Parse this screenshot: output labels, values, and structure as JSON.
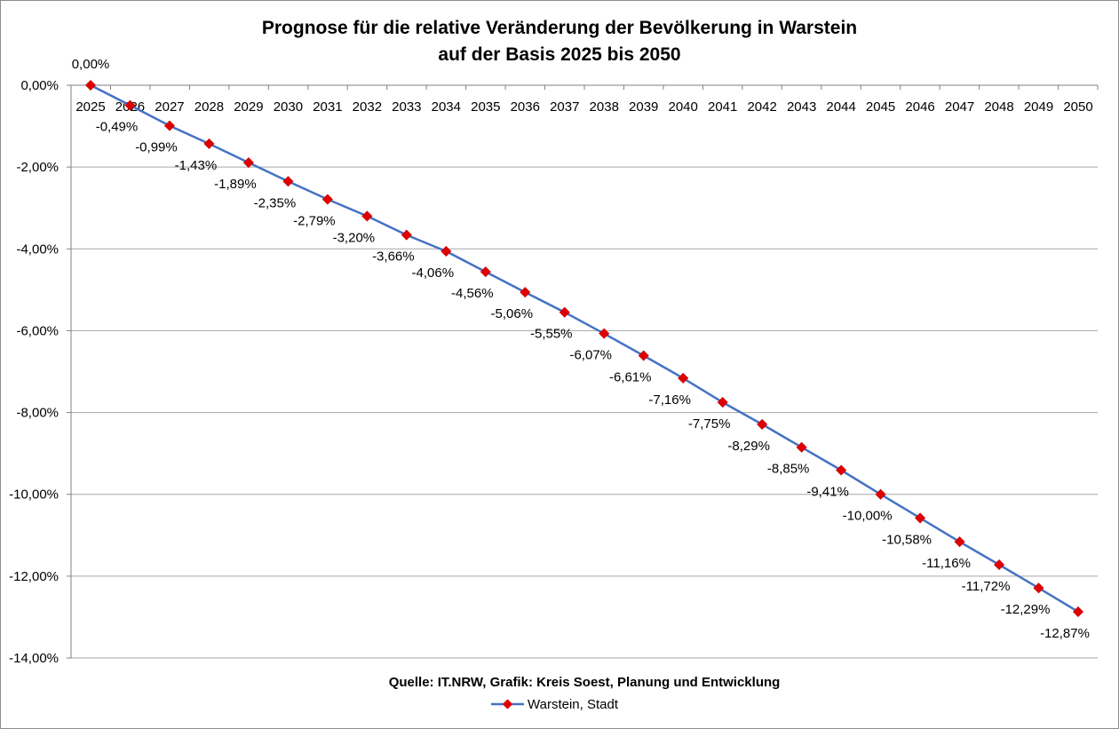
{
  "chart_data": {
    "type": "line",
    "title_line1": "Prognose für die relative Veränderung der Bevölkerung in Warstein",
    "title_line2": "auf der Basis 2025 bis 2050",
    "source": "Quelle: IT.NRW, Grafik: Kreis Soest, Planung und Entwicklung",
    "ylim": [
      -14,
      0
    ],
    "y_ticks": [
      0,
      -2,
      -4,
      -6,
      -8,
      -10,
      -12,
      -14
    ],
    "y_tick_labels": [
      "0,00%",
      "-2,00%",
      "-4,00%",
      "-6,00%",
      "-8,00%",
      "-10,00%",
      "-12,00%",
      "-14,00%"
    ],
    "categories": [
      "2025",
      "2026",
      "2027",
      "2028",
      "2029",
      "2030",
      "2031",
      "2032",
      "2033",
      "2034",
      "2035",
      "2036",
      "2037",
      "2038",
      "2039",
      "2040",
      "2041",
      "2042",
      "2043",
      "2044",
      "2045",
      "2046",
      "2047",
      "2048",
      "2049",
      "2050"
    ],
    "grid": true,
    "legend_position": "bottom",
    "series": [
      {
        "name": "Warstein, Stadt",
        "line_color": "#4472C4",
        "marker_color": "#E00000",
        "values": [
          0,
          -0.49,
          -0.99,
          -1.43,
          -1.89,
          -2.35,
          -2.79,
          -3.2,
          -3.66,
          -4.06,
          -4.56,
          -5.06,
          -5.55,
          -6.07,
          -6.61,
          -7.16,
          -7.75,
          -8.29,
          -8.85,
          -9.41,
          -10.0,
          -10.58,
          -11.16,
          -11.72,
          -12.29,
          -12.87
        ],
        "labels": [
          "0,00%",
          "-0,49%",
          "-0,99%",
          "-1,43%",
          "-1,89%",
          "-2,35%",
          "-2,79%",
          "-3,20%",
          "-3,66%",
          "-4,06%",
          "-4,56%",
          "-5,06%",
          "-5,55%",
          "-6,07%",
          "-6,61%",
          "-7,16%",
          "-7,75%",
          "-8,29%",
          "-8,85%",
          "-9,41%",
          "-10,00%",
          "-10,58%",
          "-11,16%",
          "-11,72%",
          "-12,29%",
          "-12,87%"
        ]
      }
    ]
  }
}
